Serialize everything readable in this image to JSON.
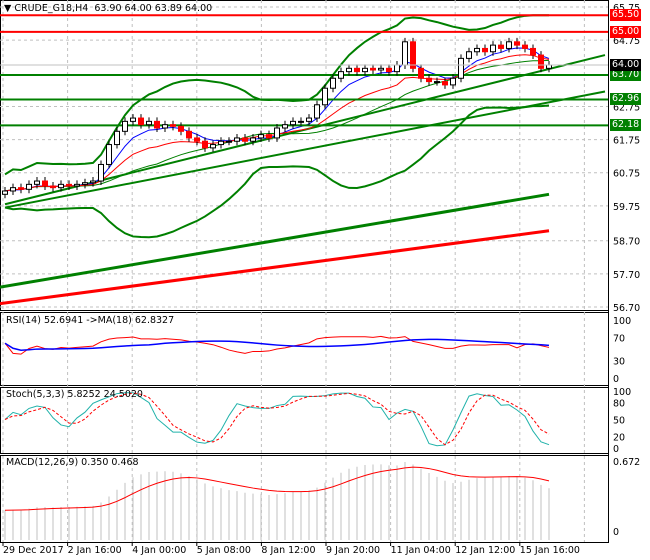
{
  "header": {
    "symbol": "CRUDE_G18,H4",
    "ohlc": "63.90 64.00 63.89 64.00"
  },
  "colors": {
    "up": "#008000",
    "down": "#ff0000",
    "resistance": "#ff0000",
    "support": "#008000",
    "rsi": "#ff0000",
    "rsi_ma": "#0000ff",
    "stoch_main": "#20b2aa",
    "stoch_signal": "#ff0000",
    "macd_hist": "#c0c0c0",
    "macd_signal": "#ff0000"
  },
  "chart_data": {
    "type": "candlestick",
    "price_axis": {
      "min": 56.7,
      "max": 65.75,
      "ticks": [
        "65.75",
        "64.75",
        "62.75",
        "61.75",
        "60.75",
        "59.75",
        "58.70",
        "57.70",
        "56.70"
      ]
    },
    "closes": [
      60.2,
      60.3,
      60.25,
      60.4,
      60.5,
      60.35,
      60.3,
      60.4,
      60.35,
      60.4,
      60.45,
      60.5,
      61.0,
      61.6,
      62.0,
      62.3,
      62.4,
      62.2,
      62.3,
      62.1,
      62.2,
      62.15,
      62.0,
      61.8,
      61.7,
      61.5,
      61.6,
      61.7,
      61.7,
      61.8,
      61.7,
      61.8,
      61.9,
      61.8,
      62.1,
      62.2,
      62.3,
      62.3,
      62.4,
      62.8,
      63.3,
      63.6,
      63.8,
      63.9,
      63.8,
      63.9,
      63.85,
      63.9,
      63.8,
      64.0,
      64.7,
      63.9,
      63.6,
      63.5,
      63.5,
      63.4,
      63.6,
      64.2,
      64.4,
      64.5,
      64.4,
      64.6,
      64.5,
      64.7,
      64.6,
      64.5,
      64.3,
      63.9,
      64.0
    ],
    "levels": [
      {
        "price": 65.5,
        "label": "65.50",
        "kind": "resistance"
      },
      {
        "price": 65.0,
        "label": "65.00",
        "kind": "resistance"
      },
      {
        "price": 63.7,
        "label": "63.70",
        "kind": "support"
      },
      {
        "price": 62.96,
        "label": "62.96",
        "kind": "support"
      },
      {
        "price": 62.18,
        "label": "62.18",
        "kind": "support"
      }
    ],
    "current_price": {
      "price": 64.0,
      "label": "64.00"
    },
    "trendlines": [
      {
        "from": [
          0,
          59.8
        ],
        "to": [
          75,
          64.3
        ]
      },
      {
        "from": [
          0,
          59.7
        ],
        "to": [
          75,
          63.2
        ]
      }
    ],
    "long_mas": [
      {
        "name": "green-ma",
        "from": [
          0,
          57.3
        ],
        "to": [
          68,
          60.1
        ]
      },
      {
        "name": "red-ma",
        "from": [
          0,
          56.8
        ],
        "to": [
          68,
          59.0
        ]
      }
    ],
    "x_labels": [
      "29 Dec 2017",
      "2 Jan 16:00",
      "4 Jan 00:00",
      "5 Jan 08:00",
      "8 Jan 12:00",
      "9 Jan 20:00",
      "11 Jan 04:00",
      "12 Jan 12:00",
      "15 Jan 16:00"
    ],
    "rsi": {
      "label": "RSI(14) 52.6941  ->MA(18) 62.8327",
      "ticks": [
        "100",
        "70",
        "30",
        "0"
      ]
    },
    "stoch": {
      "label": "Stoch(5,3,3) 5.8252 24.5020",
      "ticks": [
        "100",
        "80",
        "50",
        "20",
        "0"
      ]
    },
    "macd": {
      "label": "MACD(12,26,9) 0.350 0.468",
      "ticks": [
        "0.672",
        "0"
      ]
    }
  }
}
